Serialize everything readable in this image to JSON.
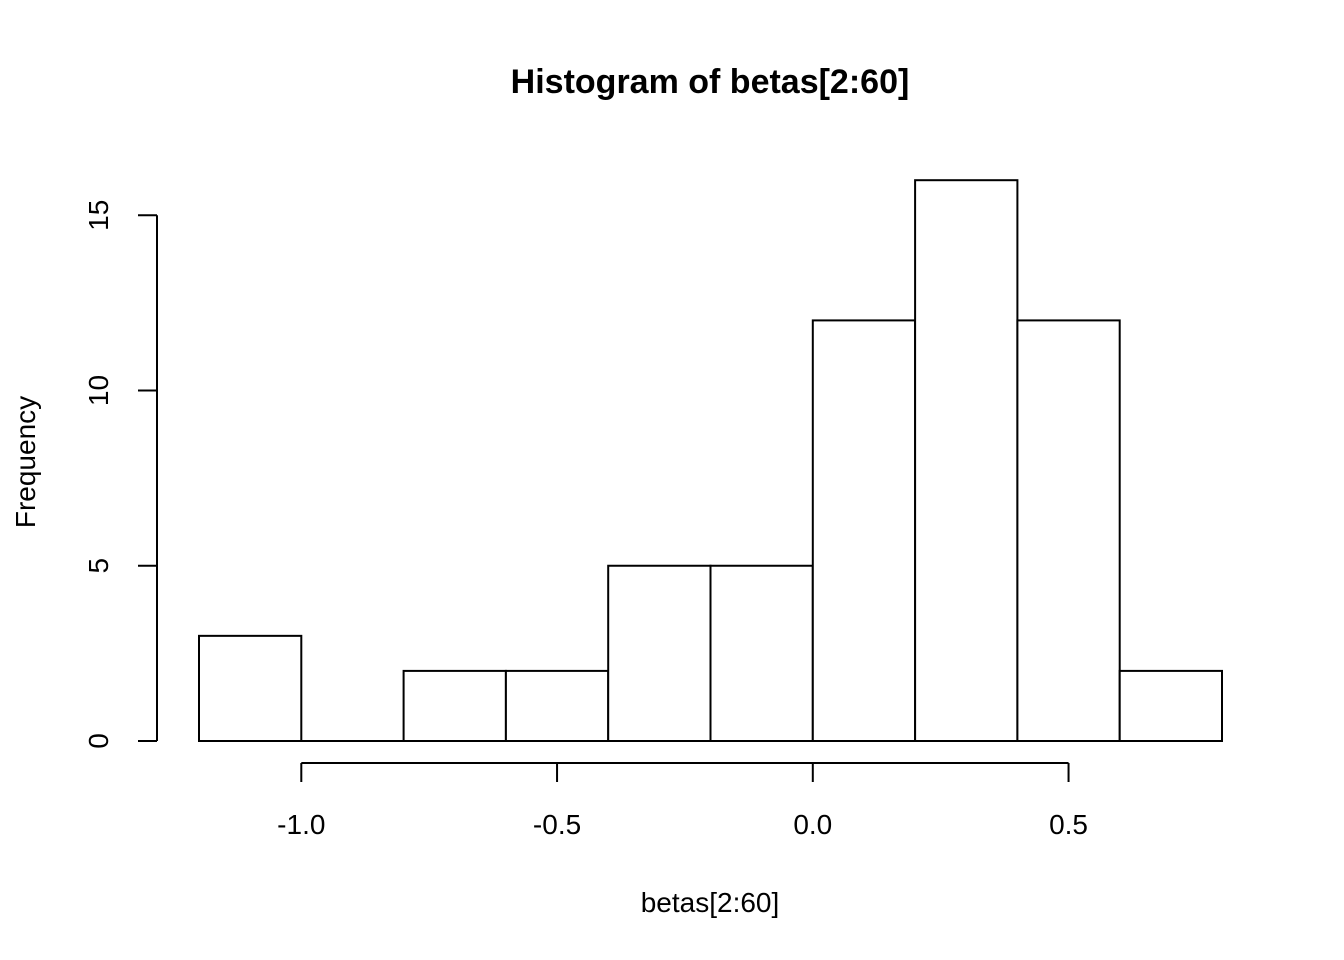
{
  "chart_data": {
    "type": "bar",
    "title": "Histogram of betas[2:60]",
    "xlabel": "betas[2:60]",
    "ylabel": "Frequency",
    "bins": [
      {
        "x0": -1.2,
        "x1": -1.0,
        "count": 3
      },
      {
        "x0": -1.0,
        "x1": -0.8,
        "count": 0
      },
      {
        "x0": -0.8,
        "x1": -0.6,
        "count": 2
      },
      {
        "x0": -0.6,
        "x1": -0.4,
        "count": 2
      },
      {
        "x0": -0.4,
        "x1": -0.2,
        "count": 5
      },
      {
        "x0": -0.2,
        "x1": 0.0,
        "count": 5
      },
      {
        "x0": 0.0,
        "x1": 0.2,
        "count": 12
      },
      {
        "x0": 0.2,
        "x1": 0.4,
        "count": 16
      },
      {
        "x0": 0.4,
        "x1": 0.6,
        "count": 12
      },
      {
        "x0": 0.6,
        "x1": 0.8,
        "count": 2
      }
    ],
    "x_ticks": [
      {
        "value": -1.0,
        "label": "-1.0"
      },
      {
        "value": -0.5,
        "label": "-0.5"
      },
      {
        "value": 0.0,
        "label": "0.0"
      },
      {
        "value": 0.5,
        "label": "0.5"
      }
    ],
    "y_ticks": [
      {
        "value": 0,
        "label": "0"
      },
      {
        "value": 5,
        "label": "5"
      },
      {
        "value": 10,
        "label": "10"
      },
      {
        "value": 15,
        "label": "15"
      }
    ],
    "xlim": [
      -1.2,
      0.8
    ],
    "ylim": [
      0,
      16
    ],
    "grid": false,
    "bar_fill": "#ffffff",
    "bar_stroke": "#000000"
  }
}
